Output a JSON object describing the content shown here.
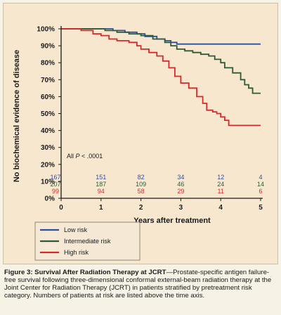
{
  "chart_data": {
    "type": "line",
    "xlabel": "Years after treatment",
    "ylabel": "No biochemical evidence of disease",
    "xlim": [
      0,
      5
    ],
    "ylim": [
      0,
      100
    ],
    "x_ticks": [
      "0",
      "1",
      "2",
      "3",
      "4",
      "5"
    ],
    "y_ticks": [
      "0%",
      "10%",
      "20%",
      "30%",
      "40%",
      "50%",
      "60%",
      "70%",
      "80%",
      "90%",
      "100%"
    ],
    "annotation_prefix": "All ",
    "annotation_p": "P",
    "annotation_value": " < .0001",
    "grid": false,
    "legend_position": "bottom-left",
    "series": [
      {
        "name": "Low risk",
        "color": "#2f4f9e",
        "points": [
          [
            0,
            100
          ],
          [
            1.0,
            100
          ],
          [
            1.3,
            99
          ],
          [
            1.6,
            98
          ],
          [
            1.9,
            97
          ],
          [
            2.1,
            95.5
          ],
          [
            2.4,
            94
          ],
          [
            2.6,
            93
          ],
          [
            2.75,
            92
          ],
          [
            2.9,
            91
          ],
          [
            3.2,
            91
          ],
          [
            3.6,
            91
          ],
          [
            4.0,
            91
          ],
          [
            4.5,
            91
          ],
          [
            5.0,
            91
          ]
        ],
        "at_risk": [
          "167",
          "151",
          "82",
          "34",
          "12",
          "4"
        ]
      },
      {
        "name": "Intermediate risk",
        "color": "#2f5a37",
        "points": [
          [
            0,
            100
          ],
          [
            0.9,
            100
          ],
          [
            1.1,
            99
          ],
          [
            1.4,
            98
          ],
          [
            1.7,
            97
          ],
          [
            2.0,
            96
          ],
          [
            2.3,
            94
          ],
          [
            2.6,
            92
          ],
          [
            2.75,
            90
          ],
          [
            2.9,
            88
          ],
          [
            3.1,
            87
          ],
          [
            3.3,
            86
          ],
          [
            3.5,
            85
          ],
          [
            3.7,
            84
          ],
          [
            3.85,
            82
          ],
          [
            4.0,
            80
          ],
          [
            4.1,
            77
          ],
          [
            4.3,
            74
          ],
          [
            4.5,
            70
          ],
          [
            4.6,
            67
          ],
          [
            4.7,
            65
          ],
          [
            4.8,
            62
          ],
          [
            5.0,
            62
          ]
        ],
        "at_risk": [
          "207",
          "187",
          "109",
          "46",
          "24",
          "14"
        ]
      },
      {
        "name": "High risk",
        "color": "#d42a2a",
        "points": [
          [
            0,
            100
          ],
          [
            0.5,
            99
          ],
          [
            0.8,
            97
          ],
          [
            1.0,
            96
          ],
          [
            1.2,
            94
          ],
          [
            1.4,
            93
          ],
          [
            1.7,
            92
          ],
          [
            1.9,
            90
          ],
          [
            2.0,
            88
          ],
          [
            2.2,
            86
          ],
          [
            2.4,
            84
          ],
          [
            2.55,
            81
          ],
          [
            2.7,
            77
          ],
          [
            2.85,
            72
          ],
          [
            3.0,
            68
          ],
          [
            3.2,
            65
          ],
          [
            3.4,
            60
          ],
          [
            3.55,
            56
          ],
          [
            3.65,
            52
          ],
          [
            3.8,
            51
          ],
          [
            3.9,
            50
          ],
          [
            4.0,
            48
          ],
          [
            4.1,
            46
          ],
          [
            4.2,
            43
          ],
          [
            4.5,
            43
          ],
          [
            5.0,
            43
          ]
        ],
        "at_risk": [
          "99",
          "94",
          "58",
          "29",
          "11",
          "6"
        ]
      }
    ]
  },
  "caption": {
    "title": "Figure 3: Survival After Radiation Therapy at JCRT",
    "body": "—Prostate-specific antigen failure-free survival following three-dimensional conformal external-beam radiation therapy at the Joint Center for Radiation Therapy (JCRT) in patients stratified by pretreatment risk category. Numbers of patients at risk are listed above the time axis."
  }
}
